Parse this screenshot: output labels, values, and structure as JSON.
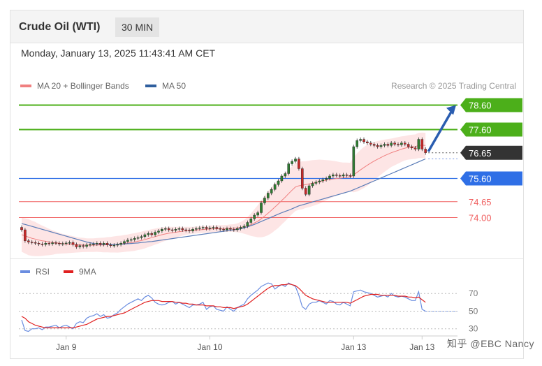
{
  "header": {
    "title": "Crude Oil (WTI)",
    "timeframe": "30 MIN"
  },
  "timestamp": "Monday, January 13, 2025 11:43:41 AM CET",
  "legend": {
    "ma20": {
      "label": "MA 20 + Bollinger Bands",
      "color": "#f08080"
    },
    "ma50": {
      "label": "MA 50",
      "color": "#2f5f9e"
    }
  },
  "credit": "Research © 2025 Trading Central",
  "rsi_legend": {
    "rsi": {
      "label": "RSI",
      "color": "#6a8de0"
    },
    "ma9": {
      "label": "9MA",
      "color": "#e02020"
    }
  },
  "watermark": "知乎 @EBC Nancy",
  "colors": {
    "up": "#2e7d32",
    "down": "#c62828",
    "green": "#4caf1a",
    "blue": "#2f6fe6",
    "red": "#f06060"
  },
  "chart_data": {
    "type": "candlestick",
    "ylim": [
      73.1,
      78.9
    ],
    "x_ticks": [
      "Jan 9",
      "Jan 10",
      "Jan 13",
      "Jan 13"
    ],
    "x_tick_index": [
      13,
      55,
      97,
      117
    ],
    "levels": [
      {
        "value": 78.6,
        "label": "78.60",
        "kind": "resistance"
      },
      {
        "value": 77.6,
        "label": "77.60",
        "kind": "resistance"
      },
      {
        "value": 76.65,
        "label": "76.65",
        "kind": "current"
      },
      {
        "value": 75.6,
        "label": "75.60",
        "kind": "pivot"
      },
      {
        "value": 74.65,
        "label": "74.65",
        "kind": "support"
      },
      {
        "value": 74.0,
        "label": "74.00",
        "kind": "support"
      }
    ],
    "forecast": {
      "from": 76.7,
      "to": 78.6
    },
    "closes": [
      73.5,
      73.05,
      73.0,
      72.98,
      72.95,
      72.92,
      72.9,
      72.95,
      72.93,
      72.97,
      72.95,
      72.92,
      72.94,
      72.96,
      72.98,
      72.9,
      72.8,
      72.85,
      72.82,
      72.88,
      72.9,
      72.92,
      72.95,
      72.9,
      72.95,
      72.88,
      72.85,
      72.87,
      72.9,
      72.95,
      73.02,
      73.08,
      73.1,
      73.15,
      73.18,
      73.22,
      73.3,
      73.35,
      73.3,
      73.4,
      73.45,
      73.52,
      73.55,
      73.5,
      73.48,
      73.52,
      73.55,
      73.5,
      73.48,
      73.45,
      73.52,
      73.55,
      73.58,
      73.6,
      73.55,
      73.58,
      73.6,
      73.55,
      73.52,
      73.5,
      73.55,
      73.52,
      73.5,
      73.55,
      73.6,
      73.65,
      73.8,
      73.95,
      74.1,
      74.2,
      74.6,
      74.8,
      75.0,
      75.15,
      75.35,
      75.5,
      75.7,
      75.8,
      76.2,
      76.3,
      76.4,
      76.0,
      75.2,
      74.95,
      75.3,
      75.4,
      75.45,
      75.5,
      75.55,
      75.6,
      75.7,
      75.75,
      75.72,
      75.7,
      75.75,
      75.72,
      75.7,
      76.9,
      77.15,
      77.2,
      77.1,
      77.05,
      77.0,
      76.95,
      76.9,
      76.95,
      77.0,
      76.95,
      77.05,
      77.0,
      76.98,
      77.05,
      77.0,
      76.9,
      76.85,
      76.8,
      77.2,
      76.8,
      76.65
    ],
    "ma20": [
      73.3,
      73.25,
      73.2,
      73.15,
      73.12,
      73.08,
      73.05,
      73.03,
      73.0,
      72.98,
      72.97,
      72.95,
      72.93,
      72.92,
      72.91,
      72.9,
      72.89,
      72.88,
      72.88,
      72.87,
      72.87,
      72.87,
      72.88,
      72.88,
      72.88,
      72.89,
      72.89,
      72.9,
      72.91,
      72.92,
      72.94,
      72.96,
      72.98,
      73.0,
      73.03,
      73.06,
      73.1,
      73.14,
      73.18,
      73.22,
      73.26,
      73.3,
      73.33,
      73.36,
      73.38,
      73.4,
      73.42,
      73.44,
      73.46,
      73.47,
      73.48,
      73.49,
      73.5,
      73.51,
      73.52,
      73.53,
      73.54,
      73.54,
      73.55,
      73.55,
      73.56,
      73.57,
      73.57,
      73.58,
      73.6,
      73.62,
      73.66,
      73.71,
      73.78,
      73.85,
      73.95,
      74.06,
      74.18,
      74.3,
      74.43,
      74.56,
      74.7,
      74.83,
      74.98,
      75.12,
      75.25,
      75.3,
      75.32,
      75.35,
      75.38,
      75.41,
      75.44,
      75.47,
      75.5,
      75.53,
      75.56,
      75.58,
      75.6,
      75.61,
      75.63,
      75.65,
      75.66,
      75.75,
      75.85,
      75.95,
      76.05,
      76.14,
      76.23,
      76.31,
      76.39,
      76.46,
      76.53,
      76.59,
      76.65,
      76.7,
      76.75,
      76.8,
      76.84,
      76.87,
      76.89,
      76.9,
      76.95,
      76.96,
      76.95
    ],
    "bb_width": [
      0.7,
      0.72,
      0.74,
      0.72,
      0.7,
      0.66,
      0.62,
      0.58,
      0.54,
      0.5,
      0.46,
      0.43,
      0.4,
      0.38,
      0.36,
      0.34,
      0.32,
      0.3,
      0.29,
      0.28,
      0.28,
      0.28,
      0.28,
      0.29,
      0.3,
      0.31,
      0.32,
      0.33,
      0.34,
      0.34,
      0.35,
      0.35,
      0.36,
      0.36,
      0.36,
      0.36,
      0.36,
      0.35,
      0.34,
      0.33,
      0.32,
      0.3,
      0.28,
      0.26,
      0.24,
      0.22,
      0.2,
      0.18,
      0.16,
      0.15,
      0.14,
      0.14,
      0.14,
      0.14,
      0.14,
      0.14,
      0.14,
      0.14,
      0.14,
      0.14,
      0.14,
      0.15,
      0.16,
      0.18,
      0.22,
      0.28,
      0.36,
      0.46,
      0.56,
      0.66,
      0.76,
      0.84,
      0.9,
      0.94,
      0.96,
      0.98,
      0.98,
      0.98,
      0.98,
      0.98,
      0.98,
      0.98,
      0.98,
      0.96,
      0.95,
      0.94,
      0.92,
      0.9,
      0.86,
      0.82,
      0.78,
      0.74,
      0.7,
      0.66,
      0.62,
      0.6,
      0.58,
      0.72,
      0.78,
      0.82,
      0.84,
      0.84,
      0.82,
      0.78,
      0.74,
      0.7,
      0.66,
      0.62,
      0.58,
      0.56,
      0.54,
      0.52,
      0.5,
      0.5,
      0.5,
      0.5,
      0.52,
      0.52,
      0.52
    ],
    "ma50": [
      73.75,
      73.72,
      73.68,
      73.64,
      73.6,
      73.56,
      73.52,
      73.48,
      73.44,
      73.4,
      73.36,
      73.32,
      73.28,
      73.24,
      73.2,
      73.16,
      73.12,
      73.08,
      73.04,
      73.0,
      72.97,
      72.94,
      72.92,
      72.91,
      72.9,
      72.9,
      72.9,
      72.9,
      72.91,
      72.91,
      72.92,
      72.93,
      72.94,
      72.95,
      72.96,
      72.98,
      72.99,
      73.01,
      73.02,
      73.04,
      73.06,
      73.08,
      73.1,
      73.12,
      73.14,
      73.16,
      73.18,
      73.2,
      73.22,
      73.24,
      73.26,
      73.28,
      73.3,
      73.32,
      73.34,
      73.36,
      73.38,
      73.4,
      73.42,
      73.44,
      73.46,
      73.48,
      73.5,
      73.52,
      73.54,
      73.58,
      73.62,
      73.67,
      73.72,
      73.78,
      73.84,
      73.9,
      73.96,
      74.02,
      74.08,
      74.14,
      74.2,
      74.25,
      74.3,
      74.36,
      74.42,
      74.48,
      74.52,
      74.56,
      74.6,
      74.64,
      74.68,
      74.72,
      74.76,
      74.8,
      74.84,
      74.88,
      74.92,
      74.96,
      75.0,
      75.04,
      75.08,
      75.14,
      75.2,
      75.26,
      75.32,
      75.38,
      75.44,
      75.5,
      75.56,
      75.62,
      75.68,
      75.74,
      75.8,
      75.86,
      75.92,
      75.98,
      76.04,
      76.1,
      76.16,
      76.22,
      76.28,
      76.34,
      76.4
    ],
    "rsi": {
      "ylim": [
        25,
        90
      ],
      "ticks": [
        70,
        50,
        30
      ],
      "rsi": [
        40,
        28,
        27,
        30,
        30,
        31,
        29,
        32,
        32,
        33,
        34,
        31,
        33,
        34,
        32,
        30,
        36,
        38,
        37,
        42,
        44,
        45,
        47,
        44,
        46,
        42,
        43,
        46,
        48,
        52,
        55,
        58,
        60,
        62,
        64,
        62,
        66,
        68,
        65,
        60,
        58,
        57,
        58,
        60,
        61,
        58,
        60,
        58,
        56,
        54,
        57,
        57,
        58,
        60,
        52,
        55,
        56,
        52,
        51,
        50,
        55,
        52,
        50,
        54,
        56,
        58,
        64,
        68,
        71,
        74,
        78,
        80,
        82,
        81,
        75,
        78,
        80,
        78,
        82,
        80,
        78,
        68,
        55,
        52,
        58,
        60,
        60,
        62,
        60,
        58,
        62,
        61,
        58,
        57,
        60,
        58,
        56,
        72,
        73,
        74,
        72,
        71,
        70,
        68,
        66,
        67,
        68,
        66,
        70,
        67,
        66,
        67,
        66,
        64,
        62,
        62,
        72,
        52,
        50
      ],
      "ma9": [
        44,
        42,
        38,
        36,
        34,
        33,
        32,
        31,
        31,
        31,
        31,
        31,
        31,
        31,
        31,
        31,
        32,
        33,
        34,
        35,
        37,
        39,
        41,
        42,
        43,
        44,
        44,
        45,
        46,
        47,
        48,
        50,
        52,
        54,
        56,
        58,
        60,
        61,
        62,
        62,
        62,
        61,
        61,
        61,
        61,
        60,
        60,
        59,
        59,
        58,
        58,
        57,
        57,
        57,
        56,
        56,
        56,
        55,
        55,
        54,
        54,
        54,
        53,
        54,
        55,
        56,
        58,
        61,
        64,
        67,
        70,
        73,
        76,
        78,
        79,
        79,
        80,
        80,
        81,
        80,
        79,
        76,
        72,
        68,
        66,
        64,
        63,
        62,
        61,
        60,
        60,
        60,
        60,
        60,
        60,
        60,
        59,
        61,
        63,
        65,
        67,
        68,
        69,
        69,
        69,
        68,
        68,
        68,
        68,
        68,
        67,
        67,
        67,
        66,
        66,
        65,
        66,
        63,
        60
      ],
      "baseline_from": 117
    }
  }
}
